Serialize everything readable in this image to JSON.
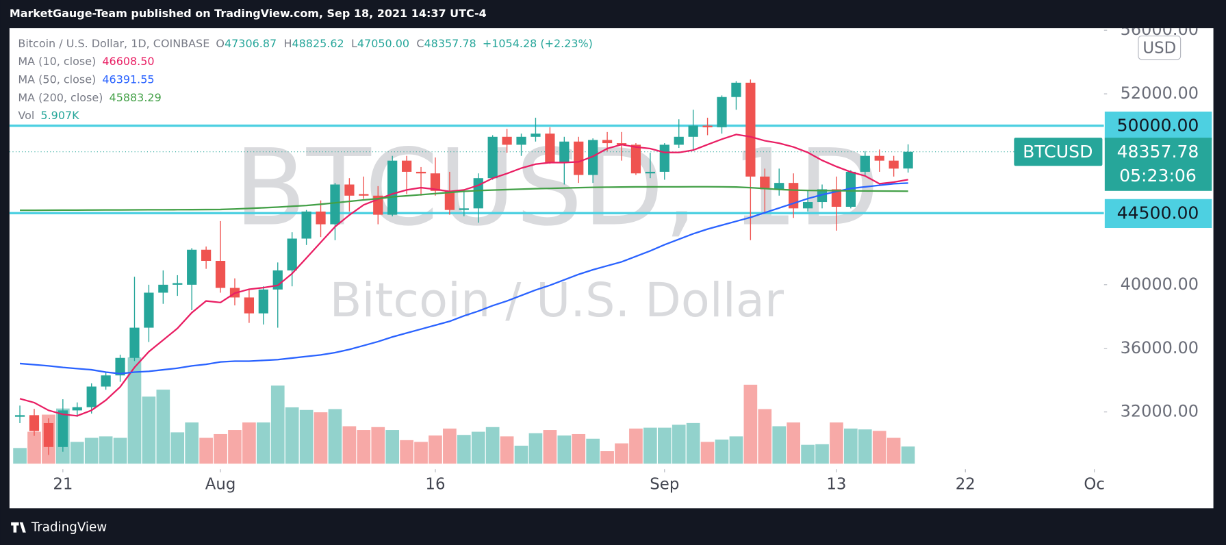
{
  "header": "MarketGauge-Team published on TradingView.com, Sep 18, 2021 14:37 UTC-4",
  "footer": "TradingView",
  "chart_data": {
    "type": "candlestick",
    "symbol": "Bitcoin / U.S. Dollar, 1D, COINBASE",
    "ohlc_legend": [
      {
        "key": "O",
        "value": "47306.87"
      },
      {
        "key": "H",
        "value": "48825.62"
      },
      {
        "key": "L",
        "value": "47050.00"
      },
      {
        "key": "C",
        "value": "48357.78"
      }
    ],
    "change": "+1054.28 (+2.23%)",
    "watermark": "BTCUSD, 1D",
    "watermark_sub": "Bitcoin / U.S. Dollar",
    "currency": "USD",
    "ticker": "BTCUSD",
    "last_price": {
      "value": 48357.78,
      "label": "48357.78"
    },
    "countdown": "05:23:06",
    "up_color": "#26a69a",
    "down_color": "#ef5350",
    "dates": [
      "2021-07-18",
      "2021-07-19",
      "2021-07-20",
      "2021-07-21",
      "2021-07-22",
      "2021-07-23",
      "2021-07-24",
      "2021-07-25",
      "2021-07-26",
      "2021-07-27",
      "2021-07-28",
      "2021-07-29",
      "2021-07-30",
      "2021-07-31",
      "2021-08-01",
      "2021-08-02",
      "2021-08-03",
      "2021-08-04",
      "2021-08-05",
      "2021-08-06",
      "2021-08-07",
      "2021-08-08",
      "2021-08-09",
      "2021-08-10",
      "2021-08-11",
      "2021-08-12",
      "2021-08-13",
      "2021-08-14",
      "2021-08-15",
      "2021-08-16",
      "2021-08-17",
      "2021-08-18",
      "2021-08-19",
      "2021-08-20",
      "2021-08-21",
      "2021-08-22",
      "2021-08-23",
      "2021-08-24",
      "2021-08-25",
      "2021-08-26",
      "2021-08-27",
      "2021-08-28",
      "2021-08-29",
      "2021-08-30",
      "2021-08-31",
      "2021-09-01",
      "2021-09-02",
      "2021-09-03",
      "2021-09-04",
      "2021-09-05",
      "2021-09-06",
      "2021-09-07",
      "2021-09-08",
      "2021-09-09",
      "2021-09-10",
      "2021-09-11",
      "2021-09-12",
      "2021-09-13",
      "2021-09-14",
      "2021-09-15",
      "2021-09-16",
      "2021-09-17",
      "2021-09-18"
    ],
    "open": [
      31700,
      31800,
      31300,
      29800,
      32100,
      32300,
      33600,
      34300,
      35400,
      37300,
      39500,
      40000,
      40000,
      42200,
      41500,
      39800,
      39200,
      38200,
      39700,
      40900,
      42900,
      44600,
      43800,
      46300,
      45700,
      45600,
      44400,
      47800,
      47100,
      47000,
      45900,
      44700,
      44800,
      46700,
      49300,
      48800,
      49300,
      49500,
      47700,
      49000,
      46900,
      49100,
      48900,
      48800,
      47000,
      47100,
      48800,
      49300,
      50000,
      49900,
      51800,
      52700,
      46800,
      46000,
      46400,
      44800,
      45200,
      46000,
      44900,
      47100,
      48100,
      47800,
      47306.87
    ],
    "high": [
      32400,
      32200,
      31600,
      32800,
      32600,
      33800,
      34500,
      35600,
      40500,
      40000,
      40900,
      40600,
      42300,
      42400,
      44000,
      40400,
      39700,
      39900,
      41400,
      43300,
      44700,
      45300,
      46400,
      46700,
      46800,
      46200,
      48100,
      48100,
      47400,
      48000,
      47100,
      46000,
      47000,
      49400,
      49800,
      49500,
      50500,
      49900,
      49300,
      49300,
      49200,
      49600,
      49600,
      48900,
      48300,
      48900,
      50400,
      51000,
      50500,
      51900,
      52800,
      52900,
      47300,
      47300,
      47000,
      45900,
      46300,
      46800,
      47200,
      48400,
      48500,
      48100,
      48825.62
    ],
    "low": [
      31300,
      30500,
      29300,
      29500,
      31700,
      31900,
      33400,
      33900,
      35200,
      36400,
      38800,
      39300,
      38400,
      41000,
      39500,
      38700,
      37600,
      37500,
      37300,
      39900,
      42500,
      43000,
      42800,
      44600,
      45400,
      43800,
      44300,
      45700,
      45600,
      45600,
      44400,
      44300,
      43900,
      46600,
      48300,
      48100,
      49000,
      47600,
      46300,
      46400,
      46400,
      48400,
      47800,
      46900,
      46700,
      46600,
      48600,
      48400,
      49400,
      49500,
      51000,
      42800,
      44500,
      45600,
      44200,
      44600,
      44800,
      43400,
      44800,
      46900,
      47100,
      46800,
      47050
    ],
    "close": [
      31800,
      30800,
      29800,
      32100,
      32300,
      33600,
      34300,
      35400,
      37300,
      39500,
      40000,
      40100,
      42200,
      41500,
      39800,
      39200,
      38200,
      39700,
      40900,
      42900,
      44600,
      43800,
      46300,
      45600,
      45600,
      44400,
      47800,
      47100,
      47000,
      45900,
      44700,
      44800,
      46700,
      49300,
      48800,
      49300,
      49500,
      47700,
      49000,
      46900,
      49100,
      48900,
      48800,
      47000,
      47100,
      48800,
      49300,
      50000,
      49900,
      51800,
      52700,
      46800,
      46000,
      46400,
      44800,
      45200,
      46000,
      44900,
      47100,
      48100,
      47800,
      47300,
      48357.78
    ],
    "volume": [
      5400,
      11000,
      16900,
      19000,
      7500,
      8900,
      9400,
      8900,
      36600,
      23100,
      25500,
      10800,
      14200,
      8900,
      10200,
      11600,
      14200,
      14200,
      26900,
      19400,
      18500,
      17700,
      18800,
      12900,
      11600,
      12600,
      11600,
      8100,
      7500,
      9700,
      12100,
      9900,
      11000,
      12600,
      9400,
      6200,
      10500,
      11600,
      9700,
      10200,
      8600,
      4300,
      7000,
      12100,
      12400,
      12400,
      13400,
      14000,
      7500,
      8300,
      9400,
      27200,
      18800,
      12900,
      14200,
      6500,
      6700,
      14200,
      12100,
      11800,
      11300,
      8900,
      5907
    ],
    "volume_name": "Vol",
    "volume_label": "5.907K",
    "volume_lim": [
      0,
      150000
    ],
    "ma": [
      {
        "name": "MA (10, close)",
        "color": "#e91e63",
        "value_label": "46608.50",
        "values": [
          32835,
          32590,
          32100,
          31850,
          31760,
          32100,
          32740,
          33575,
          34800,
          35790,
          36520,
          37260,
          38240,
          38980,
          38880,
          39470,
          39715,
          39815,
          39960,
          40700,
          41680,
          42660,
          43650,
          44380,
          45020,
          45370,
          45710,
          45960,
          46100,
          46000,
          45860,
          45960,
          46250,
          46690,
          46990,
          47330,
          47580,
          47680,
          47680,
          47725,
          48070,
          48560,
          48810,
          48660,
          48560,
          48315,
          48315,
          48460,
          48810,
          49150,
          49445,
          49300,
          49050,
          48900,
          48660,
          48315,
          47820,
          47430,
          47090,
          46840,
          46350,
          46450,
          46608.5
        ]
      },
      {
        "name": "MA (50, close)",
        "color": "#2962ff",
        "value_label": "46391.55",
        "values": [
          35047,
          34973,
          34899,
          34801,
          34727,
          34654,
          34506,
          34408,
          34506,
          34555,
          34654,
          34752,
          34899,
          34998,
          35145,
          35194,
          35194,
          35243,
          35292,
          35391,
          35489,
          35587,
          35735,
          35931,
          36177,
          36423,
          36717,
          36963,
          37209,
          37455,
          37700,
          38044,
          38339,
          38683,
          38978,
          39322,
          39666,
          39961,
          40305,
          40649,
          40943,
          41189,
          41435,
          41779,
          42123,
          42516,
          42860,
          43204,
          43499,
          43744,
          43990,
          44236,
          44531,
          44826,
          45120,
          45415,
          45661,
          45857,
          46054,
          46152,
          46251,
          46349,
          46391.55
        ]
      },
      {
        "name": "MA (200, close)",
        "color": "#43a047",
        "value_label": "45883.29",
        "values": [
          44680,
          44680,
          44685,
          44690,
          44690,
          44695,
          44700,
          44700,
          44705,
          44710,
          44710,
          44715,
          44720,
          44725,
          44730,
          44760,
          44800,
          44840,
          44880,
          44930,
          44980,
          45060,
          45150,
          45240,
          45330,
          45410,
          45520,
          45590,
          45660,
          45730,
          45800,
          45870,
          45920,
          45950,
          45980,
          46010,
          46040,
          46060,
          46080,
          46100,
          46120,
          46130,
          46140,
          46150,
          46150,
          46155,
          46155,
          46160,
          46160,
          46155,
          46140,
          46100,
          46050,
          45990,
          45950,
          45930,
          45920,
          45910,
          45900,
          45895,
          45890,
          45885,
          45883.29
        ]
      }
    ],
    "hlines": [
      {
        "value": 50000,
        "label": "50000.00"
      },
      {
        "value": 44500,
        "label": "44500.00"
      }
    ],
    "hline_color": "#4dd0e1",
    "xlim": [
      "2021-07-17",
      "2021-10-02"
    ],
    "xticks": [
      {
        "value": "2021-07-21",
        "label": "21"
      },
      {
        "value": "2021-08-01",
        "label": "Aug"
      },
      {
        "value": "2021-08-16",
        "label": "16"
      },
      {
        "value": "2021-09-01",
        "label": "Sep"
      },
      {
        "value": "2021-09-13",
        "label": "13"
      },
      {
        "value": "2021-09-22",
        "label": "22"
      },
      {
        "value": "2021-10-01",
        "label": "Oc"
      }
    ],
    "ylim": [
      28750,
      56130
    ],
    "yticks": [
      {
        "value": 32000,
        "label": "32000.00"
      },
      {
        "value": 36000,
        "label": "36000.00"
      },
      {
        "value": 40000,
        "label": "40000.00"
      },
      {
        "value": 52000,
        "label": "52000.00"
      },
      {
        "value": 56000,
        "label": "56000.00"
      }
    ]
  }
}
